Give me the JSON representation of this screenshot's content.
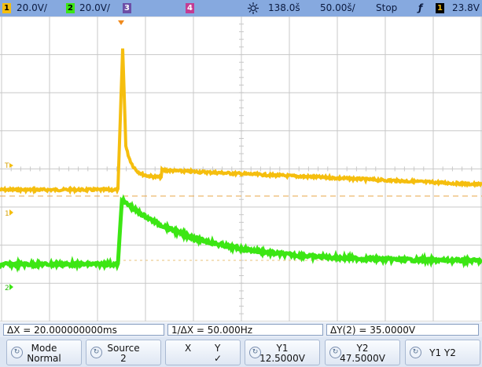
{
  "top_bar": {
    "ch1_number": "1",
    "ch1_scale": "20.0V/",
    "ch2_number": "2",
    "ch2_scale": "20.0V/",
    "ch3_number": "3",
    "ch4_number": "4",
    "trigger_position_icon": "sun-cursor-icon",
    "trigger_position": "138.0š",
    "timebase": "50.00š/",
    "run_state": "Stop",
    "trigger_edge_symbol": "ƒ",
    "trigger_source_number": "1",
    "trigger_level": "23.8V"
  },
  "markers": {
    "ch1_marker": "1",
    "ch2_marker": "2",
    "trigger_marker": "T"
  },
  "measurements": {
    "delta_x": "ΔX = 20.000000000ms",
    "inverse_delta_x": "1/ΔX = 50.000Hz",
    "delta_y": "ΔY(2) = 35.0000V"
  },
  "softkeys": {
    "mode_label": "Mode",
    "mode_value": "Normal",
    "source_label": "Source",
    "source_value": "2",
    "x_label": "X",
    "y_label": "Y",
    "y_check": "✓",
    "y1_label": "Y1",
    "y1_value": "12.5000V",
    "y2_label": "Y2",
    "y2_value": "47.5000V",
    "y1y2_label": "Y1 Y2"
  },
  "colors": {
    "ch1": "#f5be0e",
    "ch2": "#3ce614",
    "ch3": "#6c4ea6",
    "ch4": "#c43c93",
    "top_bar": "#86a9df",
    "grid": "#c8c8c8"
  }
}
